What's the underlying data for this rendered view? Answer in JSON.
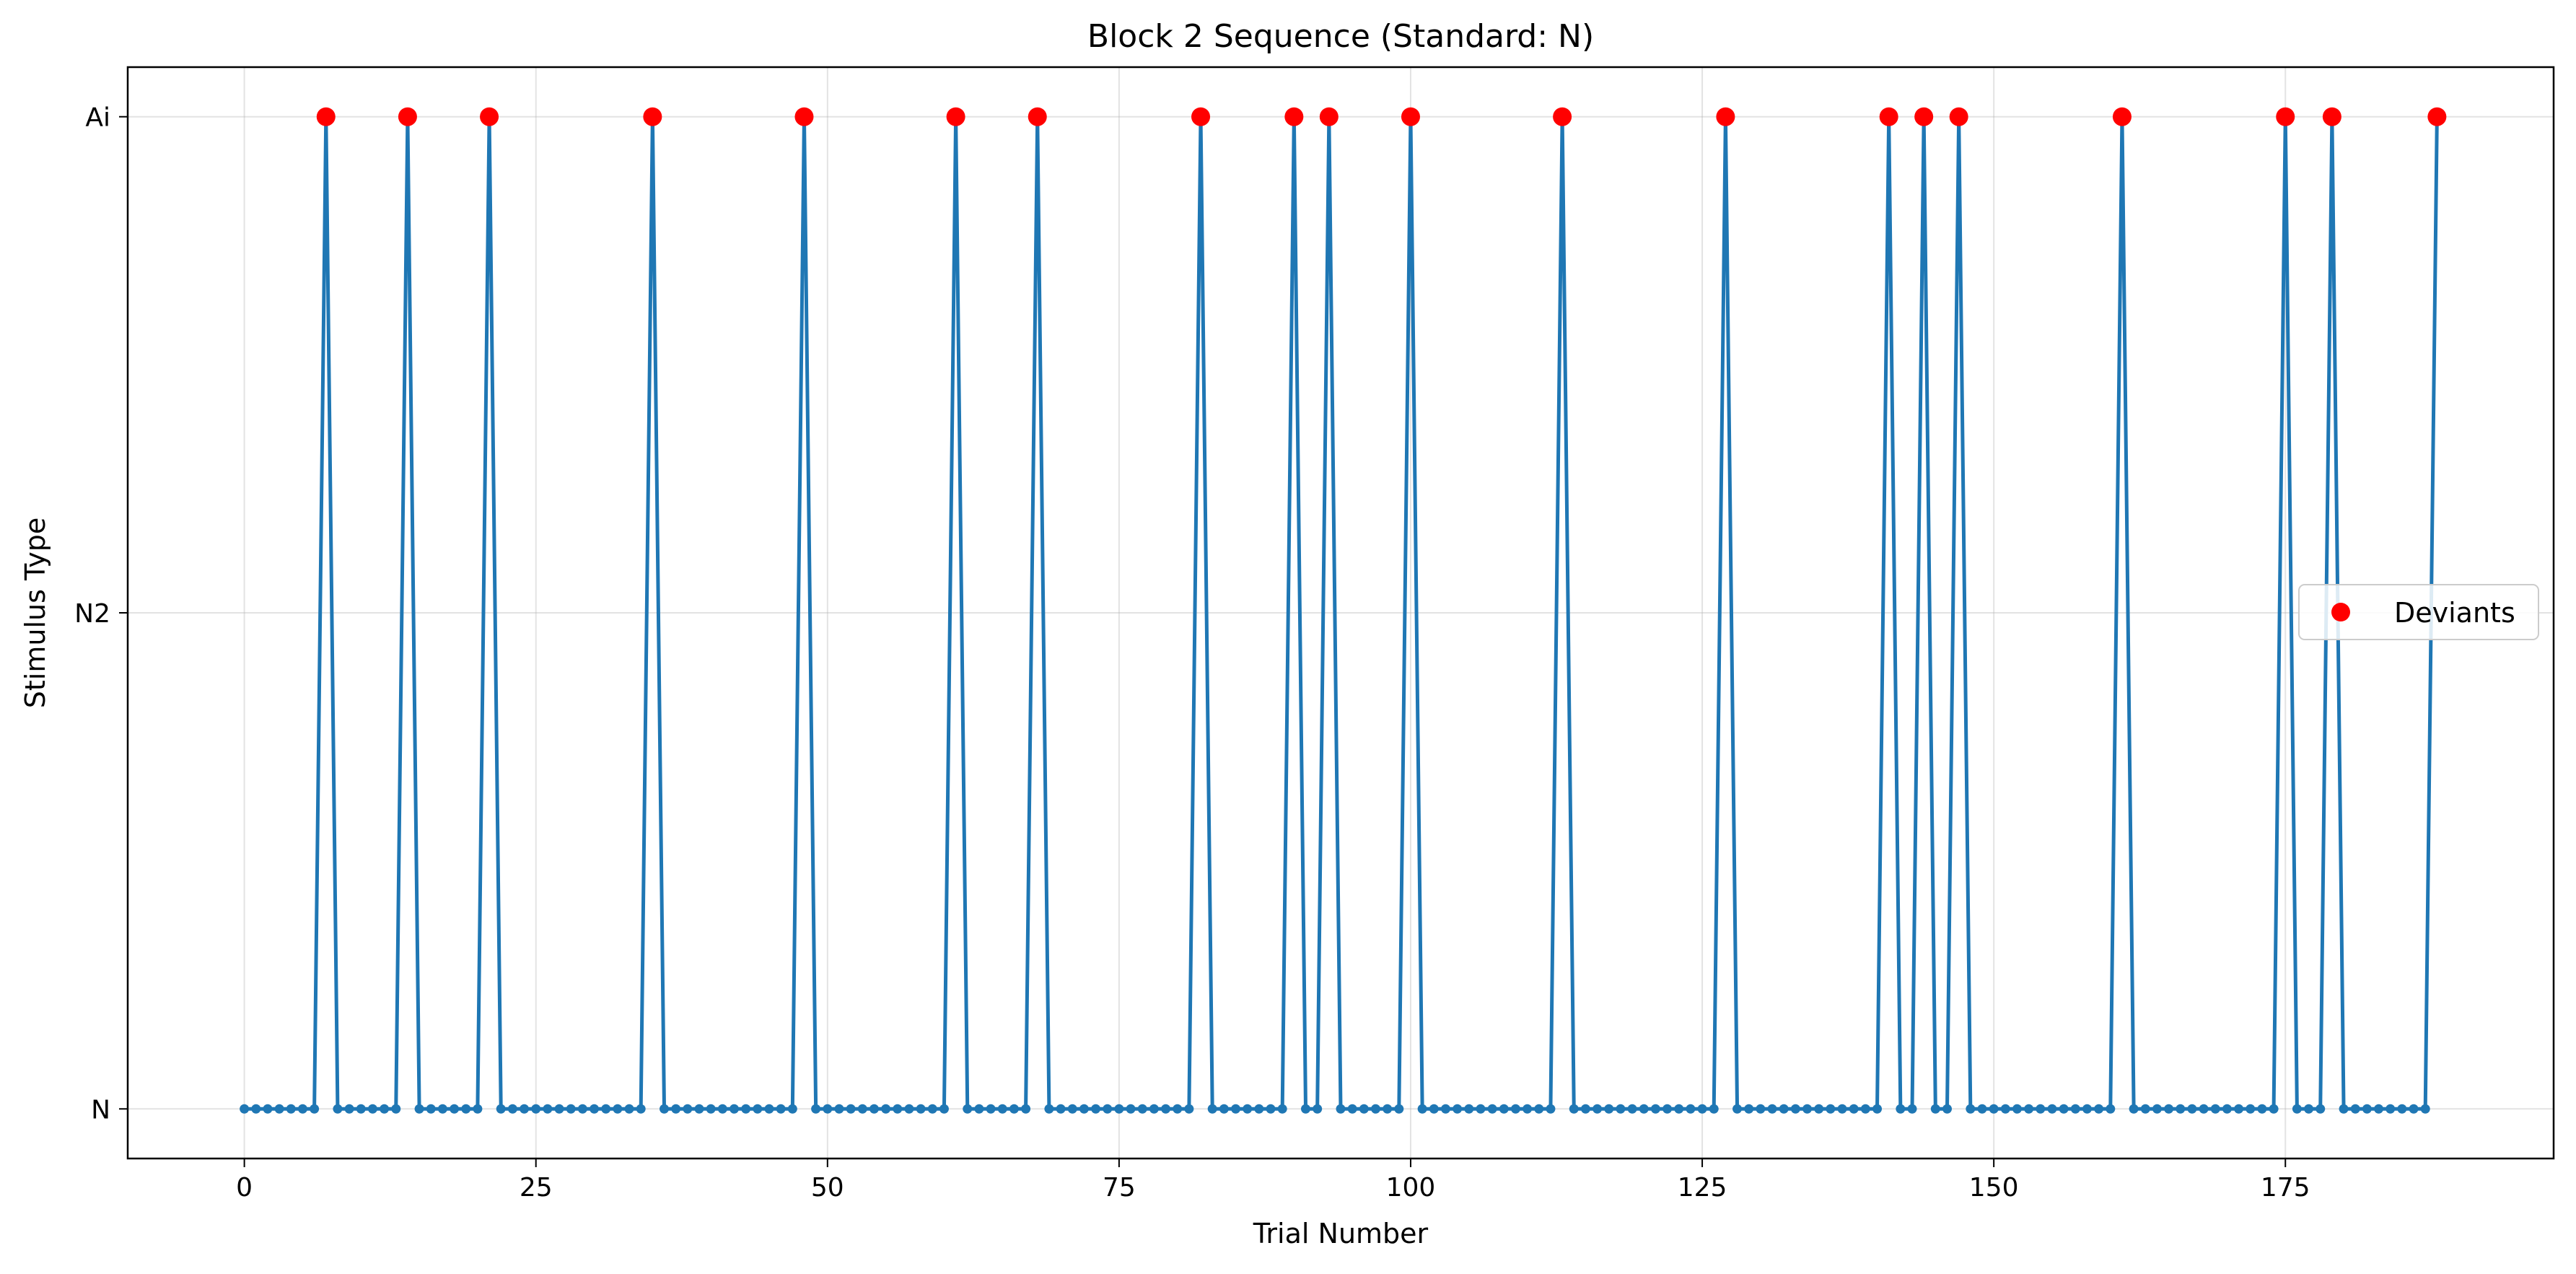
{
  "chart_data": {
    "type": "line",
    "title": "Block 2 Sequence (Standard: N)",
    "xlabel": "Trial Number",
    "ylabel": "Stimulus Type",
    "x_ticks": [
      0,
      25,
      50,
      75,
      100,
      125,
      150,
      175
    ],
    "xlim": [
      -10,
      198
    ],
    "y_categories": [
      "N",
      "N2",
      "Ai"
    ],
    "ylim": [
      -0.1,
      2.1
    ],
    "grid": true,
    "legend_position": "center-right",
    "n_trials": 189,
    "standard": "N",
    "deviant_trials": [
      7,
      14,
      21,
      35,
      48,
      61,
      68,
      82,
      90,
      93,
      100,
      113,
      127,
      141,
      144,
      147,
      161,
      175,
      179,
      188
    ],
    "series": [
      {
        "name": "",
        "style": "line-with-small-markers",
        "color": "#1f77b4"
      },
      {
        "name": "Deviants",
        "style": "markers",
        "color": "#ff0000",
        "value": "Ai"
      }
    ]
  }
}
